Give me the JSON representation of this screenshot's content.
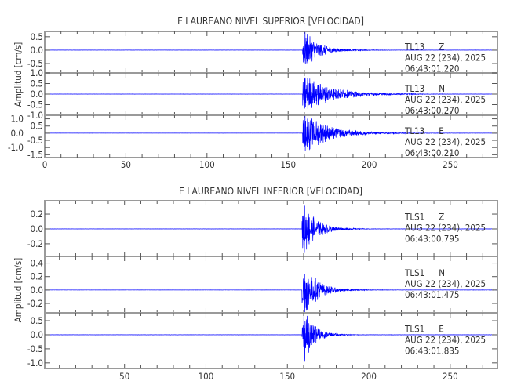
{
  "chart_data": [
    {
      "type": "line",
      "title": "E LAUREANO NIVEL SUPERIOR [VELOCIDAD]",
      "ylabel": "Amplitud [cm/s]",
      "xlabel": "",
      "xlim": [
        0,
        279
      ],
      "x_ticks": [
        0,
        50,
        100,
        150,
        200,
        250
      ],
      "trace_color": "#0000ff",
      "panels": [
        {
          "station": "TL13",
          "component": "Z",
          "date": "AUG 22 (234), 2025",
          "time": "06:43:01.220",
          "ylim": [
            -0.85,
            0.7
          ],
          "y_ticks": [
            "0.5",
            "0.0",
            "-0.5"
          ],
          "y_tick_values": [
            0.5,
            0,
            -0.5
          ],
          "onset": 159,
          "peak_amplitude": 0.8,
          "decay_s": 9
        },
        {
          "station": "TL13",
          "component": "N",
          "date": "AUG 22 (234), 2025",
          "time": "06:43:00.270",
          "ylim": [
            -1.0,
            1.0
          ],
          "y_ticks": [
            "1.0",
            "0.5",
            "0.0",
            "-0.5",
            "-1.0"
          ],
          "y_tick_values": [
            1.0,
            0.5,
            0,
            -0.5,
            -1.0
          ],
          "onset": 159,
          "peak_amplitude": 1.0,
          "decay_s": 16
        },
        {
          "station": "TL13",
          "component": "E",
          "date": "AUG 22 (234), 2025",
          "time": "06:43:00.210",
          "ylim": [
            -1.7,
            1.25
          ],
          "y_ticks": [
            "1.0",
            "0.5",
            "0.0",
            "-0.5",
            "-1.0",
            "-1.5"
          ],
          "y_tick_values": [
            1.0,
            0.5,
            0,
            -0.5,
            -1.0,
            -1.5
          ],
          "onset": 159,
          "peak_amplitude": 1.5,
          "decay_s": 15
        }
      ]
    },
    {
      "type": "line",
      "title": "E LAUREANO NIVEL INFERIOR [VELOCIDAD]",
      "ylabel": "Amplitud [cm/s]",
      "xlabel": "",
      "xlim": [
        1,
        279
      ],
      "x_ticks": [
        50,
        100,
        150,
        200,
        250
      ],
      "trace_color": "#0000ff",
      "panels": [
        {
          "station": "TLS1",
          "component": "Z",
          "date": "AUG 22 (234), 2025",
          "time": "06:43:00.795",
          "ylim": [
            -0.37,
            0.38
          ],
          "y_ticks": [
            "0.2",
            "0.0",
            "-0.2"
          ],
          "y_tick_values": [
            0.2,
            0,
            -0.2
          ],
          "onset": 159,
          "peak_amplitude": 0.37,
          "decay_s": 8
        },
        {
          "station": "TLS1",
          "component": "N",
          "date": "AUG 22 (234), 2025",
          "time": "06:43:01.475",
          "ylim": [
            -0.34,
            0.5
          ],
          "y_ticks": [
            "0.4",
            "0.2",
            "0.0",
            "-0.2"
          ],
          "y_tick_values": [
            0.4,
            0.2,
            0,
            -0.2
          ],
          "onset": 159,
          "peak_amplitude": 0.45,
          "decay_s": 8
        },
        {
          "station": "TLS1",
          "component": "E",
          "date": "AUG 22 (234), 2025",
          "time": "06:43:01.835",
          "ylim": [
            -1.2,
            0.78
          ],
          "y_ticks": [
            "0.5",
            "0.0",
            "-0.5",
            "-1.0"
          ],
          "y_tick_values": [
            0.5,
            0,
            -0.5,
            -1.0
          ],
          "onset": 159,
          "peak_amplitude": 1.1,
          "decay_s": 6
        }
      ]
    }
  ]
}
